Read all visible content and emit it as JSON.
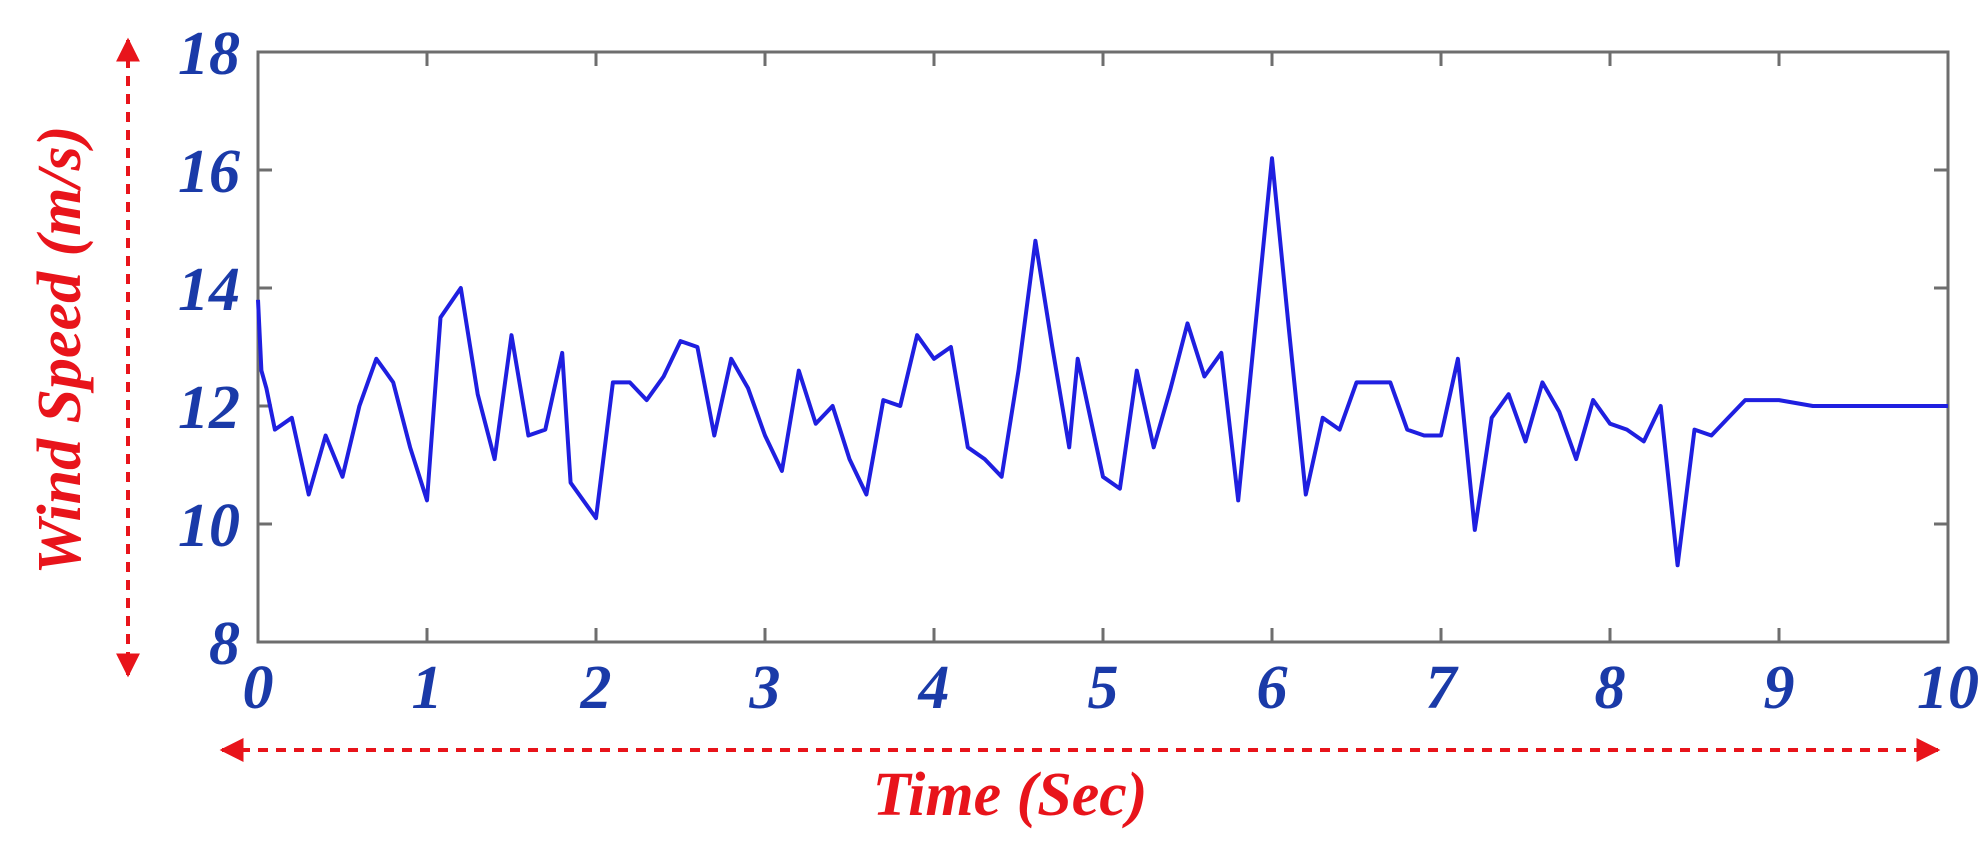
{
  "chart_data": {
    "type": "line",
    "title": "",
    "xlabel": "Time (Sec)",
    "ylabel": "Wind Speed (m/s)",
    "xlim": [
      0,
      10
    ],
    "ylim": [
      8,
      18
    ],
    "x_ticks": [
      0,
      1,
      2,
      3,
      4,
      5,
      6,
      7,
      8,
      9,
      10
    ],
    "y_ticks": [
      8,
      10,
      12,
      14,
      16,
      18
    ],
    "grid": false,
    "colors": {
      "series": "#1f1fe0",
      "tick_labels": "#1a3aa8",
      "axis_titles": "#e8141b",
      "arrows": "#e8141b",
      "frame": "#6e6e6e"
    },
    "series": [
      {
        "x": [
          0.0,
          0.02,
          0.05,
          0.1,
          0.2,
          0.3,
          0.4,
          0.5,
          0.6,
          0.7,
          0.75,
          0.8,
          0.9,
          1.0,
          1.08,
          1.2,
          1.3,
          1.4,
          1.5,
          1.6,
          1.7,
          1.8,
          1.85,
          2.0,
          2.1,
          2.2,
          2.3,
          2.4,
          2.5,
          2.6,
          2.7,
          2.8,
          2.9,
          3.0,
          3.1,
          3.2,
          3.3,
          3.4,
          3.5,
          3.6,
          3.7,
          3.8,
          3.9,
          4.0,
          4.1,
          4.2,
          4.3,
          4.4,
          4.5,
          4.6,
          4.7,
          4.8,
          4.85,
          5.0,
          5.1,
          5.2,
          5.3,
          5.4,
          5.5,
          5.6,
          5.7,
          5.8,
          6.0,
          6.1,
          6.2,
          6.3,
          6.4,
          6.5,
          6.6,
          6.7,
          6.8,
          6.9,
          7.0,
          7.1,
          7.2,
          7.3,
          7.4,
          7.5,
          7.6,
          7.7,
          7.8,
          7.9,
          8.0,
          8.1,
          8.2,
          8.3,
          8.4,
          8.5,
          8.6,
          8.7,
          8.8,
          9.0,
          9.2,
          9.5,
          9.8,
          10.0
        ],
        "y": [
          13.8,
          12.6,
          12.3,
          11.6,
          11.8,
          10.5,
          11.5,
          10.8,
          12.0,
          12.8,
          12.6,
          12.4,
          11.3,
          10.4,
          13.5,
          14.0,
          12.2,
          11.1,
          13.2,
          11.5,
          11.6,
          12.9,
          10.7,
          10.1,
          12.4,
          12.4,
          12.1,
          12.5,
          13.1,
          13.0,
          11.5,
          12.8,
          12.3,
          11.5,
          10.9,
          12.6,
          11.7,
          12.0,
          11.1,
          10.5,
          12.1,
          12.0,
          13.2,
          12.8,
          13.0,
          11.3,
          11.1,
          10.8,
          12.6,
          14.8,
          13.0,
          11.3,
          12.8,
          10.8,
          10.6,
          12.6,
          11.3,
          12.3,
          13.4,
          12.5,
          12.9,
          10.4,
          16.2,
          13.3,
          10.5,
          11.8,
          11.6,
          12.4,
          12.4,
          12.4,
          11.6,
          11.5,
          11.5,
          12.8,
          9.9,
          11.8,
          12.2,
          11.4,
          12.4,
          11.9,
          11.1,
          12.1,
          11.7,
          11.6,
          11.4,
          12.0,
          9.3,
          11.6,
          11.5,
          11.8,
          12.1,
          12.1,
          12.0,
          12.0,
          12.0,
          12.0
        ]
      }
    ]
  }
}
